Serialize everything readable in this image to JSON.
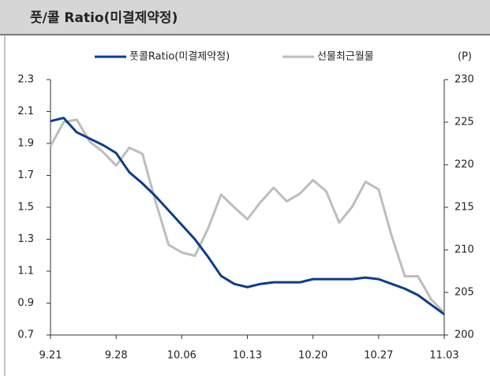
{
  "chart_data": {
    "type": "line",
    "title": "풋/콜 Ratio(미결제약정)",
    "y2_label": "(P)",
    "categories": [
      "9.21",
      null,
      null,
      null,
      null,
      "9.28",
      null,
      null,
      null,
      null,
      "10.06",
      null,
      null,
      null,
      null,
      "10.13",
      null,
      null,
      null,
      null,
      "10.20",
      null,
      null,
      null,
      null,
      "10.27",
      null,
      null,
      null,
      null,
      "11.03"
    ],
    "series": [
      {
        "name": "풋콜Ratio(미결제약정)",
        "color": "#0b3d8c",
        "values": [
          2.04,
          2.06,
          1.97,
          1.93,
          1.89,
          1.84,
          1.72,
          1.65,
          1.57,
          1.48,
          1.39,
          1.3,
          1.19,
          1.07,
          1.02,
          1.0,
          1.02,
          1.03,
          1.03,
          1.03,
          1.05,
          1.05,
          1.05,
          1.05,
          1.06,
          1.05,
          1.02,
          0.99,
          0.95,
          0.89,
          0.83
        ]
      },
      {
        "name": "선물최근월물",
        "color": "#bdbdbd",
        "axis": "y2",
        "values": [
          222.2,
          225.0,
          225.3,
          222.7,
          221.5,
          219.9,
          222.0,
          221.3,
          215.7,
          210.6,
          209.7,
          209.3,
          212.5,
          216.5,
          215.0,
          213.6,
          215.6,
          217.3,
          215.7,
          216.6,
          218.2,
          216.9,
          213.2,
          215.1,
          218.0,
          217.1,
          211.6,
          206.9,
          206.9,
          204.2,
          202.6
        ]
      }
    ],
    "ylim": [
      0.7,
      2.3
    ],
    "yticks": [
      0.7,
      0.9,
      1.1,
      1.3,
      1.5,
      1.7,
      1.9,
      2.1,
      2.3
    ],
    "y2lim": [
      200,
      230
    ],
    "y2ticks": [
      200,
      205,
      210,
      215,
      220,
      225,
      230
    ],
    "legend": "top"
  }
}
